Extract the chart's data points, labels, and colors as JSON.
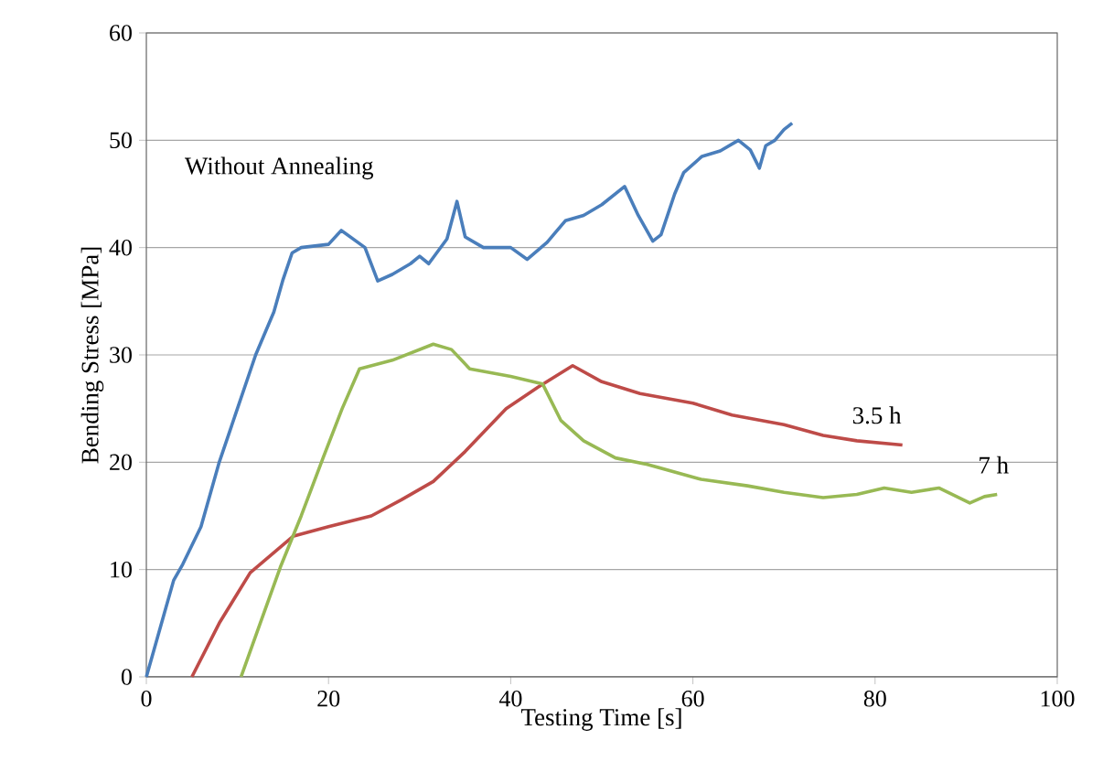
{
  "chart_data": {
    "type": "line",
    "xlabel": "Testing Time [s]",
    "ylabel": "Bending Stress [MPa]",
    "xlim": [
      0,
      100
    ],
    "ylim": [
      0,
      60
    ],
    "xticks": [
      0,
      20,
      40,
      60,
      80,
      100
    ],
    "yticks": [
      0,
      10,
      20,
      30,
      40,
      50,
      60
    ],
    "grid": "y",
    "legend": false,
    "marker": "none",
    "line_style": "solid",
    "series": [
      {
        "name": "Without Annealing",
        "color": "#4a7ebb",
        "x": [
          0,
          2,
          3,
          4,
          6,
          8,
          10,
          12,
          14,
          15,
          16,
          17,
          20,
          21.4,
          24,
          25.4,
          27,
          29,
          30,
          31,
          33,
          34.1,
          35,
          37,
          40,
          41.8,
          44,
          46,
          48,
          50,
          52.5,
          54,
          55.6,
          56.5,
          58,
          59,
          61,
          63,
          65,
          66.3,
          67.3,
          68,
          69,
          70,
          70.9
        ],
        "values": [
          0,
          6,
          9,
          10.5,
          14,
          20,
          25,
          30,
          34,
          37,
          39.5,
          40,
          40.3,
          41.6,
          40,
          36.9,
          37.5,
          38.5,
          39.2,
          38.5,
          40.8,
          44.3,
          41,
          40,
          40,
          38.9,
          40.5,
          42.5,
          43,
          44,
          45.7,
          43,
          40.6,
          41.2,
          45,
          47,
          48.5,
          49,
          50,
          49.1,
          47.4,
          49.5,
          50,
          51,
          51.6
        ]
      },
      {
        "name": "3.5 h",
        "color": "#be4b48",
        "x": [
          5,
          8,
          11.4,
          16.1,
          20,
          24.7,
          28,
          31.5,
          35,
          39.5,
          43,
          46.8,
          50,
          54.2,
          60,
          64.3,
          70,
          74.3,
          78,
          83
        ],
        "values": [
          0,
          5,
          9.7,
          13.1,
          14,
          15,
          16.5,
          18.2,
          21,
          25,
          27,
          29,
          27.5,
          26.4,
          25.5,
          24.4,
          23.5,
          22.5,
          22,
          21.6
        ]
      },
      {
        "name": "7 h",
        "color": "#98b954",
        "x": [
          10.4,
          12.5,
          14.7,
          17,
          19.4,
          21.5,
          23.4,
          27,
          31.5,
          33.5,
          35.5,
          40,
          43.5,
          45.5,
          48,
          51.5,
          55,
          60.9,
          66,
          70,
          74.3,
          78,
          81,
          84,
          87,
          90.4,
          92,
          93.4
        ],
        "values": [
          0,
          5,
          10.2,
          15,
          20.4,
          25,
          28.7,
          29.5,
          31,
          30.5,
          28.7,
          28,
          27.3,
          23.9,
          22,
          20.4,
          19.8,
          18.4,
          17.8,
          17.2,
          16.7,
          17,
          17.6,
          17.2,
          17.6,
          16.2,
          16.8,
          17
        ]
      }
    ]
  }
}
